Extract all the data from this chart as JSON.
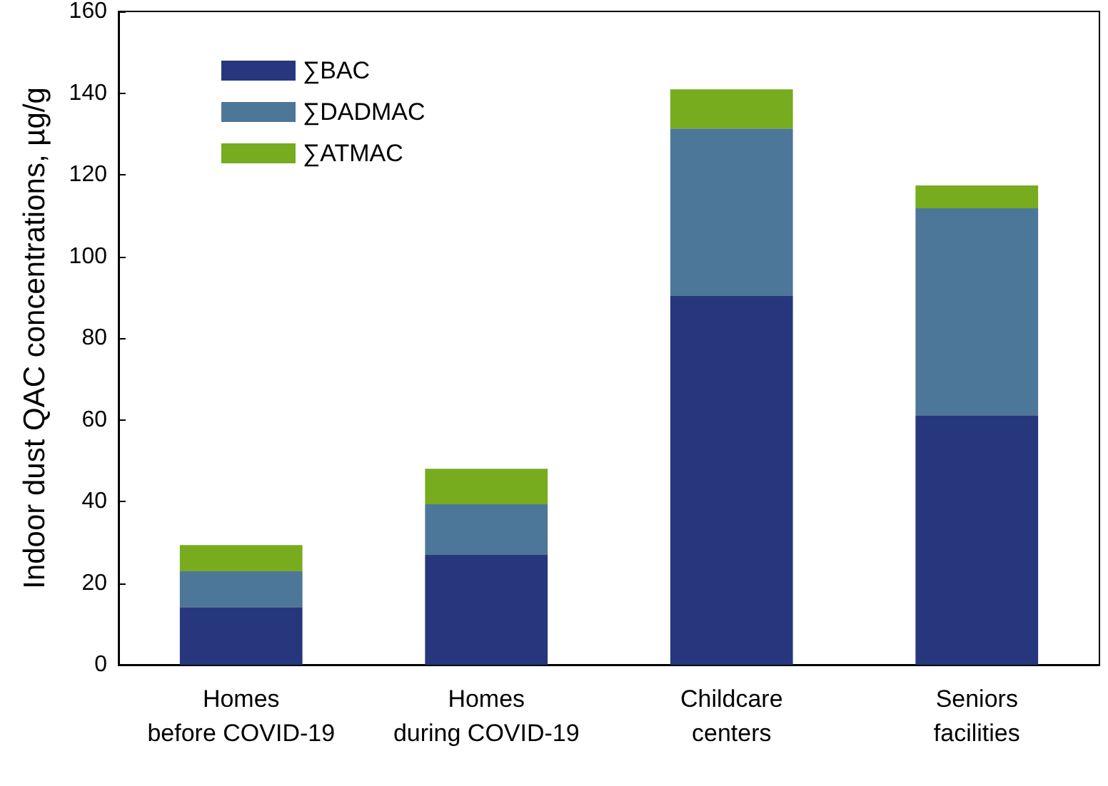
{
  "chart_data": {
    "type": "bar",
    "stacked": true,
    "ylabel": "Indoor dust QAC concentrations, µg/g",
    "categories": [
      "Homes\nbefore COVID-19",
      "Homes\nduring COVID-19",
      "Childcare\ncenters",
      "Seniors\nfacilities"
    ],
    "series": [
      {
        "name": "∑BAC",
        "color": "#26377d",
        "values": [
          14.1,
          26.9,
          90.3,
          61.1
        ]
      },
      {
        "name": "∑DADMAC",
        "color": "#4d7799",
        "values": [
          8.8,
          12.4,
          41.0,
          50.7
        ]
      },
      {
        "name": "∑ATMAC",
        "color": "#76ac1e",
        "values": [
          6.4,
          8.7,
          9.6,
          5.6
        ]
      }
    ],
    "ylim": [
      0,
      160
    ],
    "yticks": [
      0,
      20,
      40,
      60,
      80,
      100,
      120,
      140,
      160
    ],
    "grid": false,
    "legend": "top left"
  }
}
